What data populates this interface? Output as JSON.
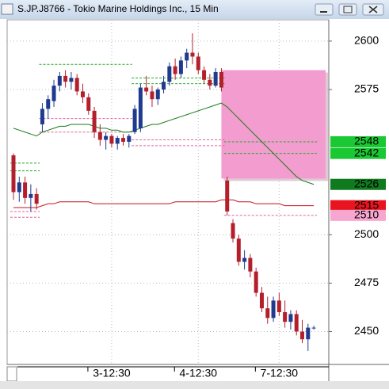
{
  "window_title": "S.JP.J8766 - Tokio Marine Holdings Inc., 15 Min",
  "chart_data": {
    "type": "candlestick",
    "categories": [
      null,
      null,
      null,
      null,
      null,
      null,
      null,
      null,
      null,
      null,
      null,
      null,
      null,
      null,
      null,
      null,
      null,
      "3-12:30",
      null,
      null,
      null,
      null,
      null,
      null,
      null,
      null,
      null,
      null,
      null,
      null,
      null,
      null,
      "4-12:30",
      null,
      null,
      null,
      null,
      null,
      null,
      null,
      null,
      null,
      null,
      null,
      null,
      null,
      "7-12:30",
      null,
      null,
      null,
      null,
      null,
      null
    ],
    "ohlc": [
      [
        2541,
        2542,
        2518,
        2522
      ],
      [
        2522,
        2530,
        2517,
        2527
      ],
      [
        2527,
        2530,
        2516,
        2519
      ],
      [
        2519,
        2526,
        2512,
        2521
      ],
      [
        2521,
        2524,
        2513,
        2516
      ],
      [
        2557,
        2568,
        2553,
        2565
      ],
      [
        2565,
        2572,
        2560,
        2570
      ],
      [
        2569,
        2580,
        2566,
        2577
      ],
      [
        2577,
        2584,
        2574,
        2582
      ],
      [
        2582,
        2585,
        2576,
        2579
      ],
      [
        2579,
        2584,
        2575,
        2581
      ],
      [
        2581,
        2583,
        2572,
        2574
      ],
      [
        2574,
        2578,
        2568,
        2571
      ],
      [
        2571,
        2573,
        2562,
        2564
      ],
      [
        2564,
        2566,
        2550,
        2553
      ],
      [
        2553,
        2557,
        2546,
        2549
      ],
      [
        2549,
        2553,
        2544,
        2551
      ],
      [
        2551,
        2552,
        2545,
        2547
      ],
      [
        2547,
        2551,
        2544,
        2550
      ],
      [
        2550,
        2552,
        2546,
        2548
      ],
      [
        2548,
        2552,
        2545,
        2551
      ],
      [
        2553,
        2567,
        2552,
        2565
      ],
      [
        2555,
        2578,
        2553,
        2576
      ],
      [
        2576,
        2582,
        2572,
        2574
      ],
      [
        2574,
        2577,
        2566,
        2570
      ],
      [
        2570,
        2576,
        2567,
        2575
      ],
      [
        2575,
        2582,
        2573,
        2579
      ],
      [
        2579,
        2589,
        2577,
        2587
      ],
      [
        2587,
        2591,
        2580,
        2583
      ],
      [
        2583,
        2592,
        2581,
        2590
      ],
      [
        2590,
        2596,
        2586,
        2594
      ],
      [
        2594,
        2604,
        2588,
        2592
      ],
      [
        2592,
        2594,
        2583,
        2585
      ],
      [
        2585,
        2587,
        2578,
        2580
      ],
      [
        2580,
        2583,
        2575,
        2577
      ],
      [
        2577,
        2586,
        2576,
        2584
      ],
      [
        2584,
        2586,
        2574,
        2576
      ],
      [
        2528,
        2530,
        2510,
        2512
      ],
      [
        2506,
        2508,
        2496,
        2498
      ],
      [
        2498,
        2500,
        2484,
        2486
      ],
      [
        2486,
        2492,
        2482,
        2488
      ],
      [
        2488,
        2490,
        2478,
        2481
      ],
      [
        2481,
        2483,
        2468,
        2470
      ],
      [
        2470,
        2473,
        2460,
        2462
      ],
      [
        2462,
        2468,
        2454,
        2457
      ],
      [
        2457,
        2468,
        2455,
        2466
      ],
      [
        2466,
        2470,
        2458,
        2460
      ],
      [
        2460,
        2466,
        2452,
        2455
      ],
      [
        2455,
        2461,
        2451,
        2459
      ],
      [
        2459,
        2461,
        2448,
        2450
      ],
      [
        2450,
        2456,
        2444,
        2446
      ],
      [
        2446,
        2454,
        2440,
        2452
      ],
      [
        2452,
        2453,
        2451,
        2452
      ]
    ],
    "up_color": "#1f3a8f",
    "down_color": "#b3202c",
    "lines": [
      {
        "color": "#1a7a1a",
        "values": [
          2555,
          2554,
          2553,
          2552,
          2551,
          2553,
          2554,
          2555,
          2556,
          2556,
          2557,
          2557,
          2557,
          2557,
          2556,
          2555,
          2555,
          2554,
          2554,
          2553,
          2553,
          2554,
          2555,
          2556,
          2557,
          2557,
          2558,
          2559,
          2560,
          2561,
          2562,
          2563,
          2564,
          2565,
          2566,
          2567,
          2568,
          2566,
          2563,
          2560,
          2557,
          2554,
          2551,
          2548,
          2545,
          2542,
          2539,
          2536,
          2533,
          2530,
          2528,
          2527,
          2526
        ]
      },
      {
        "color": "#c0141e",
        "values": [
          2514,
          2514,
          2514,
          2514,
          2514,
          2515,
          2516,
          2516,
          2517,
          2517,
          2517,
          2517,
          2517,
          2517,
          2516,
          2516,
          2516,
          2516,
          2516,
          2516,
          2516,
          2516,
          2516,
          2516,
          2516,
          2516,
          2516,
          2516,
          2517,
          2517,
          2517,
          2517,
          2517,
          2517,
          2517,
          2517,
          2518,
          2518,
          2518,
          2517,
          2517,
          2517,
          2516,
          2516,
          2516,
          2516,
          2516,
          2515,
          2515,
          2515,
          2515,
          2515,
          2515
        ]
      }
    ],
    "levels": [
      {
        "value": 2537,
        "color": "#22aa22",
        "from": 0,
        "to": 4
      },
      {
        "value": 2533,
        "color": "#22aa22",
        "from": 0,
        "to": 4
      },
      {
        "value": 2512,
        "color": "#e060a0",
        "from": 0,
        "to": 4
      },
      {
        "value": 2509,
        "color": "#e060a0",
        "from": 0,
        "to": 4
      },
      {
        "value": 2588,
        "color": "#22aa22",
        "from": 5,
        "to": 20
      },
      {
        "value": 2560,
        "color": "#e060a0",
        "from": 5,
        "to": 20
      },
      {
        "value": 2553,
        "color": "#e060a0",
        "from": 5,
        "to": 20
      },
      {
        "value": 2581,
        "color": "#22aa22",
        "from": 21,
        "to": 36
      },
      {
        "value": 2578,
        "color": "#22aa22",
        "from": 21,
        "to": 36
      },
      {
        "value": 2549,
        "color": "#e060a0",
        "from": 21,
        "to": 36
      },
      {
        "value": 2546,
        "color": "#e060a0",
        "from": 21,
        "to": 36
      },
      {
        "value": 2548,
        "color": "#22aa22",
        "from": 37,
        "to": 52
      },
      {
        "value": 2542,
        "color": "#22aa22",
        "from": 37,
        "to": 52
      },
      {
        "value": 2510,
        "color": "#e060a0",
        "from": 37,
        "to": 52
      }
    ],
    "zone": {
      "from": 2529,
      "to": 2585,
      "start": 36,
      "color": "#f29ccf"
    },
    "price_markers": [
      {
        "value": 2548,
        "color": "#19c832"
      },
      {
        "value": 2542,
        "color": "#19c832"
      },
      {
        "value": 2526,
        "color": "#0f7a1e"
      },
      {
        "value": 2515,
        "color": "#e8141e"
      },
      {
        "value": 2510,
        "color": "#f7a6cf"
      }
    ],
    "ylim": [
      2433,
      2611
    ],
    "yticks": [
      2450,
      2475,
      2500,
      2575,
      2600
    ],
    "grid": true
  }
}
